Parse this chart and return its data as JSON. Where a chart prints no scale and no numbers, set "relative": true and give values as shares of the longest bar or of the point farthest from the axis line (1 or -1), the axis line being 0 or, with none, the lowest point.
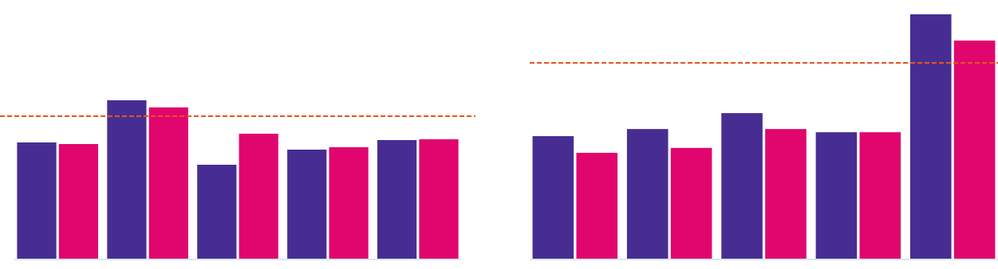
{
  "chart_data": [
    {
      "type": "bar",
      "relative": true,
      "categories": [
        null,
        null,
        null,
        null,
        null
      ],
      "series": [
        {
          "color": "#472d92",
          "values": [
            0.735,
            1,
            0.595,
            0.69,
            0.75
          ]
        },
        {
          "color": "#e0066e",
          "values": [
            0.725,
            0.955,
            0.79,
            0.705,
            0.755
          ]
        }
      ],
      "ref_lines": [
        {
          "axis": "y",
          "value": 0.9,
          "color": "#e5541b",
          "line_style": "dashed"
        }
      ]
    },
    {
      "type": "bar",
      "relative": true,
      "categories": [
        null,
        null,
        null,
        null,
        null
      ],
      "series": [
        {
          "color": "#472d92",
          "values": [
            0.503,
            0.532,
            0.597,
            0.519,
            1
          ]
        },
        {
          "color": "#e0066e",
          "values": [
            0.435,
            0.455,
            0.532,
            0.519,
            0.893
          ]
        }
      ],
      "ref_lines": [
        {
          "axis": "y",
          "value": 0.802,
          "color": "#e5541b",
          "line_style": "dashed"
        }
      ]
    }
  ]
}
